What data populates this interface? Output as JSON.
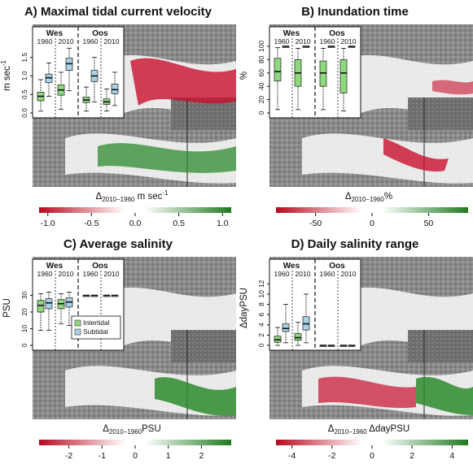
{
  "colors": {
    "intertidal": "#8fd97d",
    "subtidal": "#a9d3e6",
    "negative": "#c8102e",
    "positive": "#2e8b2e"
  },
  "panel_labels": {
    "wes": "Wes",
    "oos": "Oos",
    "y1960": "1960",
    "y2010": "2010",
    "intertidal": "Intertidal",
    "subtidal": "Subtidal"
  },
  "chart_data": [
    {
      "type": "box",
      "title": "A) Maximal tidal current velocity",
      "ylabel": "m sec",
      "ylabel_sup": "-1",
      "ylim": [
        0,
        1.8
      ],
      "yticks": [
        "0.0",
        "0.5",
        "1.0",
        "1.5"
      ],
      "ytick_values": [
        0,
        0.5,
        1.0,
        1.5
      ],
      "groups": [
        "Wes",
        "Oos"
      ],
      "boxes": [
        {
          "group": "Wes",
          "year": "1960",
          "kind": "Intertidal",
          "min": 0.05,
          "q1": 0.33,
          "median": 0.45,
          "q3": 0.56,
          "max": 0.9
        },
        {
          "group": "Wes",
          "year": "1960",
          "kind": "Subtidal",
          "min": 0.45,
          "q1": 0.82,
          "median": 0.95,
          "q3": 1.05,
          "max": 1.35
        },
        {
          "group": "Wes",
          "year": "2010",
          "kind": "Intertidal",
          "min": 0.1,
          "q1": 0.48,
          "median": 0.62,
          "q3": 0.76,
          "max": 1.1
        },
        {
          "group": "Wes",
          "year": "2010",
          "kind": "Subtidal",
          "min": 0.6,
          "q1": 1.15,
          "median": 1.33,
          "q3": 1.48,
          "max": 1.75
        },
        {
          "group": "Oos",
          "year": "1960",
          "kind": "Intertidal",
          "min": 0.05,
          "q1": 0.28,
          "median": 0.35,
          "q3": 0.43,
          "max": 0.7
        },
        {
          "group": "Oos",
          "year": "1960",
          "kind": "Subtidal",
          "min": 0.3,
          "q1": 0.85,
          "median": 1.0,
          "q3": 1.15,
          "max": 1.5
        },
        {
          "group": "Oos",
          "year": "2010",
          "kind": "Intertidal",
          "min": 0.05,
          "q1": 0.23,
          "median": 0.3,
          "q3": 0.38,
          "max": 0.65
        },
        {
          "group": "Oos",
          "year": "2010",
          "kind": "Subtidal",
          "min": 0.2,
          "q1": 0.52,
          "median": 0.63,
          "q3": 0.78,
          "max": 1.1
        }
      ],
      "colorbar_label": "Δ2010−1960 m sec⁻¹",
      "colorbar_label_sub": "2010−1960",
      "colorbar_label_unit": " m sec",
      "colorbar_label_sup": "-1",
      "colorbar_ticks": [
        "-1.0",
        "-0.5",
        "0.0",
        "0.5",
        "1.0"
      ],
      "colorbar_range": [
        -1.1,
        1.1
      ],
      "colorbar_tick_values": [
        -1.0,
        -0.5,
        0.0,
        0.5,
        1.0
      ],
      "map_dominant": "red-upper, green-lower"
    },
    {
      "type": "box",
      "title": "B) Inundation time",
      "ylabel": "%",
      "ylabel_sup": "",
      "ylim": [
        0,
        100
      ],
      "yticks": [
        "0",
        "20",
        "40",
        "60",
        "80",
        "100"
      ],
      "ytick_values": [
        0,
        20,
        40,
        60,
        80,
        100
      ],
      "groups": [
        "Wes",
        "Oos"
      ],
      "boxes": [
        {
          "group": "Wes",
          "year": "1960",
          "kind": "Intertidal",
          "min": 5,
          "q1": 48,
          "median": 62,
          "q3": 82,
          "max": 98
        },
        {
          "group": "Wes",
          "year": "1960",
          "kind": "Subtidal",
          "min": 99,
          "q1": 100,
          "median": 100,
          "q3": 100,
          "max": 100
        },
        {
          "group": "Wes",
          "year": "2010",
          "kind": "Intertidal",
          "min": 5,
          "q1": 40,
          "median": 60,
          "q3": 80,
          "max": 97
        },
        {
          "group": "Wes",
          "year": "2010",
          "kind": "Subtidal",
          "min": 99,
          "q1": 100,
          "median": 100,
          "q3": 100,
          "max": 100
        },
        {
          "group": "Oos",
          "year": "1960",
          "kind": "Intertidal",
          "min": 5,
          "q1": 40,
          "median": 60,
          "q3": 78,
          "max": 97
        },
        {
          "group": "Oos",
          "year": "1960",
          "kind": "Subtidal",
          "min": 99,
          "q1": 100,
          "median": 100,
          "q3": 100,
          "max": 100
        },
        {
          "group": "Oos",
          "year": "2010",
          "kind": "Intertidal",
          "min": 3,
          "q1": 30,
          "median": 60,
          "q3": 80,
          "max": 97
        },
        {
          "group": "Oos",
          "year": "2010",
          "kind": "Subtidal",
          "min": 99,
          "q1": 100,
          "median": 100,
          "q3": 100,
          "max": 100
        }
      ],
      "colorbar_label": "Δ2010−1960%",
      "colorbar_label_sub": "2010−1960",
      "colorbar_label_unit": "%",
      "colorbar_label_sup": "",
      "colorbar_ticks": [
        "-50",
        "0",
        "50"
      ],
      "colorbar_range": [
        -85,
        85
      ],
      "colorbar_tick_values": [
        -50,
        0,
        50
      ],
      "map_dominant": "mostly white, scattered red"
    },
    {
      "type": "box",
      "title": "C) Average salinity",
      "ylabel": "PSU",
      "ylabel_sup": "",
      "ylim": [
        0,
        40
      ],
      "yticks": [
        "0",
        "10",
        "20",
        "30"
      ],
      "ytick_values": [
        0,
        10,
        20,
        30
      ],
      "groups": [
        "Wes",
        "Oos"
      ],
      "boxes": [
        {
          "group": "Wes",
          "year": "1960",
          "kind": "Intertidal",
          "min": 9,
          "q1": 20,
          "median": 24,
          "q3": 27,
          "max": 31
        },
        {
          "group": "Wes",
          "year": "1960",
          "kind": "Subtidal",
          "min": 9,
          "q1": 22,
          "median": 25.5,
          "q3": 28,
          "max": 32
        },
        {
          "group": "Wes",
          "year": "2010",
          "kind": "Intertidal",
          "min": 13,
          "q1": 22,
          "median": 25,
          "q3": 27.5,
          "max": 31
        },
        {
          "group": "Wes",
          "year": "2010",
          "kind": "Subtidal",
          "min": 12,
          "q1": 23,
          "median": 26,
          "q3": 28.5,
          "max": 32
        },
        {
          "group": "Oos",
          "year": "1960",
          "kind": "Intertidal",
          "min": 30,
          "q1": 30,
          "median": 30,
          "q3": 30,
          "max": 30
        },
        {
          "group": "Oos",
          "year": "1960",
          "kind": "Subtidal",
          "min": 30,
          "q1": 30,
          "median": 30,
          "q3": 30,
          "max": 30
        },
        {
          "group": "Oos",
          "year": "2010",
          "kind": "Intertidal",
          "min": 30,
          "q1": 30,
          "median": 30,
          "q3": 30,
          "max": 30
        },
        {
          "group": "Oos",
          "year": "2010",
          "kind": "Subtidal",
          "min": 30,
          "q1": 30,
          "median": 30,
          "q3": 30,
          "max": 30
        }
      ],
      "legend": true,
      "colorbar_label": "Δ2010−1960PSU",
      "colorbar_label_sub": "2010−1960",
      "colorbar_label_unit": "PSU",
      "colorbar_label_sup": "",
      "colorbar_ticks": [
        "-2",
        "-1",
        "0",
        "1",
        "2"
      ],
      "colorbar_range": [
        -2.9,
        2.9
      ],
      "colorbar_tick_values": [
        -2,
        -1,
        0,
        1,
        2
      ],
      "map_dominant": "mostly white, green lower"
    },
    {
      "type": "box",
      "title": "D) Daily salinity range",
      "ylabel": "ΔdayPSU",
      "ylabel_sup": "",
      "ylim": [
        0,
        13
      ],
      "yticks": [
        "0",
        "2",
        "4",
        "6",
        "8",
        "10",
        "12"
      ],
      "ytick_values": [
        0,
        2,
        4,
        6,
        8,
        10,
        12
      ],
      "groups": [
        "Wes",
        "Oos"
      ],
      "boxes": [
        {
          "group": "Wes",
          "year": "1960",
          "kind": "Intertidal",
          "min": 0,
          "q1": 0.6,
          "median": 1.1,
          "q3": 1.8,
          "max": 3.5
        },
        {
          "group": "Wes",
          "year": "1960",
          "kind": "Subtidal",
          "min": 0.5,
          "q1": 2.7,
          "median": 3.3,
          "q3": 4.2,
          "max": 8
        },
        {
          "group": "Wes",
          "year": "2010",
          "kind": "Intertidal",
          "min": 0,
          "q1": 1.0,
          "median": 1.5,
          "q3": 2.3,
          "max": 4.5
        },
        {
          "group": "Wes",
          "year": "2010",
          "kind": "Subtidal",
          "min": 0.5,
          "q1": 3.0,
          "median": 4.2,
          "q3": 5.6,
          "max": 10
        },
        {
          "group": "Oos",
          "year": "1960",
          "kind": "Intertidal",
          "min": 0,
          "q1": 0,
          "median": 0,
          "q3": 0,
          "max": 0
        },
        {
          "group": "Oos",
          "year": "1960",
          "kind": "Subtidal",
          "min": 0,
          "q1": 0,
          "median": 0,
          "q3": 0,
          "max": 0
        },
        {
          "group": "Oos",
          "year": "2010",
          "kind": "Intertidal",
          "min": 0,
          "q1": 0,
          "median": 0,
          "q3": 0,
          "max": 0
        },
        {
          "group": "Oos",
          "year": "2010",
          "kind": "Subtidal",
          "min": 0,
          "q1": 0,
          "median": 0,
          "q3": 0,
          "max": 0
        }
      ],
      "colorbar_label": "Δ2010−1960 ΔdayPSU",
      "colorbar_label_sub": "2010−1960",
      "colorbar_label_unit": " ΔdayPSU",
      "colorbar_label_sup": "",
      "colorbar_ticks": [
        "-4",
        "-2",
        "0",
        "2",
        "4"
      ],
      "colorbar_range": [
        -4.8,
        4.8
      ],
      "colorbar_tick_values": [
        -4,
        -2,
        0,
        2,
        4
      ],
      "map_dominant": "red-green mixed lower"
    }
  ]
}
